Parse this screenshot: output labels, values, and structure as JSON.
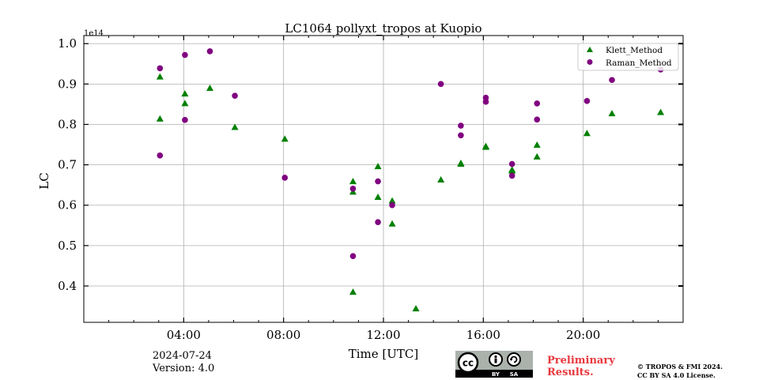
{
  "chart_data": {
    "type": "scatter",
    "title": "LC1064 pollyxt_tropos at Kuopio",
    "xlabel": "Time [UTC]",
    "ylabel": "LC",
    "y_offset_label": "1e14",
    "xlim": [
      0,
      24
    ],
    "ylim": [
      0.31,
      1.02
    ],
    "x_ticks": [
      4,
      8,
      12,
      16,
      20
    ],
    "x_tick_labels": [
      "04:00",
      "08:00",
      "12:00",
      "16:00",
      "20:00"
    ],
    "x_minor_ticks": [
      0,
      1,
      2,
      3,
      5,
      6,
      7,
      9,
      10,
      11,
      13,
      14,
      15,
      17,
      18,
      19,
      21,
      22,
      23,
      24
    ],
    "y_ticks": [
      0.4,
      0.5,
      0.6,
      0.7,
      0.8,
      0.9,
      1.0
    ],
    "y_tick_labels": [
      "0.4",
      "0.5",
      "0.6",
      "0.7",
      "0.8",
      "0.9",
      "1.0"
    ],
    "grid": true,
    "legend_position": "top-right",
    "series": [
      {
        "name": "Klett_Method",
        "marker": "triangle",
        "color": "#008000",
        "points": [
          [
            3.05,
            0.918
          ],
          [
            3.05,
            0.814
          ],
          [
            4.05,
            0.876
          ],
          [
            4.05,
            0.852
          ],
          [
            5.05,
            0.89
          ],
          [
            6.05,
            0.793
          ],
          [
            8.05,
            0.764
          ],
          [
            10.78,
            0.659
          ],
          [
            10.78,
            0.633
          ],
          [
            10.78,
            0.385
          ],
          [
            11.78,
            0.696
          ],
          [
            11.78,
            0.62
          ],
          [
            12.35,
            0.611
          ],
          [
            12.35,
            0.554
          ],
          [
            13.3,
            0.344
          ],
          [
            14.3,
            0.663
          ],
          [
            15.1,
            0.704
          ],
          [
            15.1,
            0.702
          ],
          [
            16.1,
            0.746
          ],
          [
            16.1,
            0.744
          ],
          [
            17.15,
            0.688
          ],
          [
            17.15,
            0.685
          ],
          [
            18.15,
            0.749
          ],
          [
            18.15,
            0.72
          ],
          [
            20.15,
            0.778
          ],
          [
            21.15,
            0.827
          ],
          [
            23.1,
            0.83
          ]
        ]
      },
      {
        "name": "Raman_Method",
        "marker": "circle",
        "color": "#800080",
        "points": [
          [
            3.05,
            0.939
          ],
          [
            3.05,
            0.723
          ],
          [
            4.05,
            0.972
          ],
          [
            4.05,
            0.811
          ],
          [
            5.05,
            0.981
          ],
          [
            6.05,
            0.871
          ],
          [
            8.05,
            0.668
          ],
          [
            10.78,
            0.641
          ],
          [
            10.78,
            0.474
          ],
          [
            11.78,
            0.659
          ],
          [
            11.78,
            0.558
          ],
          [
            12.35,
            0.6
          ],
          [
            14.3,
            0.9
          ],
          [
            15.1,
            0.797
          ],
          [
            15.1,
            0.773
          ],
          [
            16.1,
            0.866
          ],
          [
            16.1,
            0.856
          ],
          [
            17.15,
            0.702
          ],
          [
            17.15,
            0.673
          ],
          [
            18.15,
            0.852
          ],
          [
            18.15,
            0.812
          ],
          [
            20.15,
            0.858
          ],
          [
            21.15,
            0.91
          ],
          [
            23.1,
            0.936
          ]
        ]
      }
    ]
  },
  "footer": {
    "date": "2024-07-24",
    "version": "Version: 4.0",
    "preliminary_line1": "Preliminary",
    "preliminary_line2": "Results.",
    "copyright_line1": "© TROPOS & FMI 2024.",
    "copyright_line2": "CC BY SA 4.0 License."
  },
  "license_badge": {
    "cc_label": "cc",
    "by_label": "BY",
    "sa_label": "SA"
  }
}
